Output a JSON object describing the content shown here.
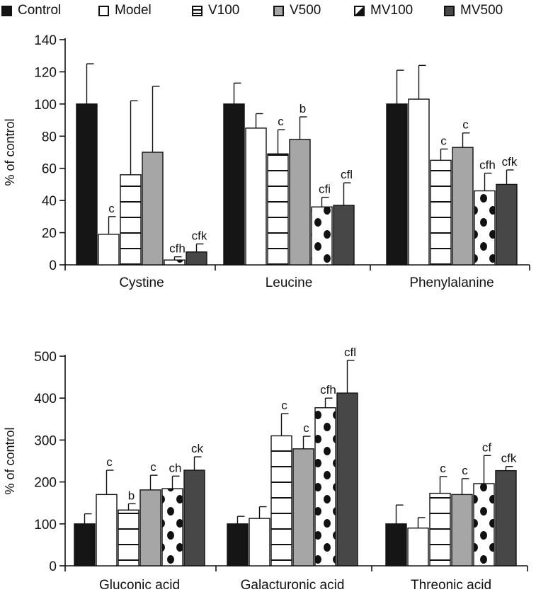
{
  "legend": [
    {
      "name": "Control",
      "fill": "#151515",
      "pattern": "solid"
    },
    {
      "name": "Model",
      "fill": "#ffffff",
      "pattern": "solid"
    },
    {
      "name": "V100",
      "fill": "#ffffff",
      "pattern": "hlines"
    },
    {
      "name": "V500",
      "fill": "#a6a6a6",
      "pattern": "solid"
    },
    {
      "name": "MV100",
      "fill": "#ffffff",
      "pattern": "dots"
    },
    {
      "name": "MV500",
      "fill": "#474747",
      "pattern": "solid"
    }
  ],
  "chart_data": [
    {
      "type": "bar",
      "title": "",
      "ylabel": "% of control",
      "xlabel": "",
      "ylim": [
        0,
        140
      ],
      "yticks": [
        0,
        20,
        40,
        60,
        80,
        100,
        120,
        140
      ],
      "categories": [
        "Cystine",
        "Leucine",
        "Phenylalanine"
      ],
      "series": [
        {
          "name": "Control",
          "values": [
            100,
            100,
            100
          ],
          "errors": [
            25,
            13,
            21
          ],
          "labels": [
            "",
            "",
            ""
          ]
        },
        {
          "name": "Model",
          "values": [
            19,
            85,
            103
          ],
          "errors": [
            11,
            9,
            21
          ],
          "labels": [
            "c",
            "",
            ""
          ]
        },
        {
          "name": "V100",
          "values": [
            56,
            69,
            65
          ],
          "errors": [
            46,
            15,
            7
          ],
          "labels": [
            "",
            "c",
            "c"
          ]
        },
        {
          "name": "V500",
          "values": [
            70,
            78,
            73
          ],
          "errors": [
            41,
            14,
            9
          ],
          "labels": [
            "",
            "b",
            "c"
          ]
        },
        {
          "name": "MV100",
          "values": [
            3,
            36,
            46
          ],
          "errors": [
            2,
            6,
            11
          ],
          "labels": [
            "cfh",
            "cfi",
            "cfh"
          ]
        },
        {
          "name": "MV500",
          "values": [
            8,
            37,
            50
          ],
          "errors": [
            5,
            14,
            9
          ],
          "labels": [
            "cfk",
            "cfl",
            "cfk"
          ]
        }
      ]
    },
    {
      "type": "bar",
      "title": "",
      "ylabel": "% of control",
      "xlabel": "",
      "ylim": [
        0,
        500
      ],
      "yticks": [
        0,
        100,
        200,
        300,
        400,
        500
      ],
      "categories": [
        "Gluconic acid",
        "Galacturonic acid",
        "Threonic acid"
      ],
      "series": [
        {
          "name": "Control",
          "values": [
            100,
            100,
            100
          ],
          "errors": [
            24,
            18,
            45
          ],
          "labels": [
            "",
            "",
            ""
          ]
        },
        {
          "name": "Model",
          "values": [
            170,
            113,
            90
          ],
          "errors": [
            58,
            28,
            25
          ],
          "labels": [
            "c",
            "",
            ""
          ]
        },
        {
          "name": "V100",
          "values": [
            133,
            310,
            173
          ],
          "errors": [
            15,
            53,
            40
          ],
          "labels": [
            "b",
            "c",
            "c"
          ]
        },
        {
          "name": "V500",
          "values": [
            181,
            279,
            170
          ],
          "errors": [
            35,
            30,
            38
          ],
          "labels": [
            "c",
            "c",
            "c"
          ]
        },
        {
          "name": "MV100",
          "values": [
            184,
            377,
            196
          ],
          "errors": [
            30,
            23,
            67
          ],
          "labels": [
            "ch",
            "cfh",
            "cf"
          ]
        },
        {
          "name": "MV500",
          "values": [
            228,
            412,
            227
          ],
          "errors": [
            32,
            78,
            10
          ],
          "labels": [
            "ck",
            "cfl",
            "cfk"
          ]
        }
      ]
    }
  ]
}
